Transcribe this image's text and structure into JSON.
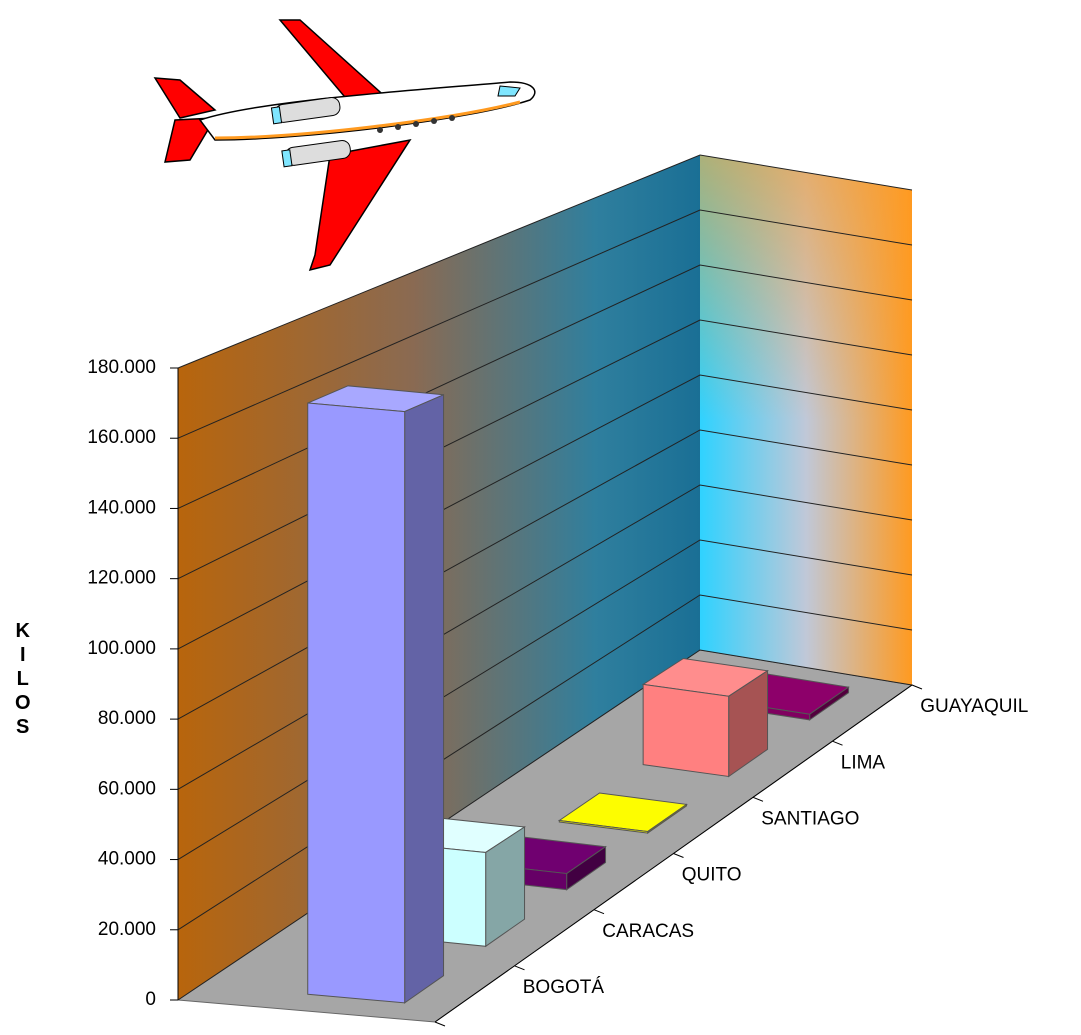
{
  "chart_data": {
    "type": "bar3d",
    "y_label": "KILOS",
    "categories": [
      "BOGOTÁ",
      "CARACAS",
      "QUITO",
      "SANTIAGO",
      "LIMA",
      "GUAYAQUIL"
    ],
    "values": [
      170000,
      28000,
      5000,
      500,
      27000,
      2000
    ],
    "colors": [
      "#9999ff",
      "#ccffff",
      "#660066",
      "#e6e600",
      "#ff8080",
      "#800060"
    ],
    "ylim": [
      0,
      180000
    ],
    "yticks": [
      0,
      {
        "value": 20000,
        "label": "20.000"
      },
      {
        "value": 40000,
        "label": "40.000"
      },
      {
        "value": 60000,
        "label": "60.000"
      },
      {
        "value": 80000,
        "label": "80.000"
      },
      {
        "value": 100000,
        "label": "100.000"
      },
      {
        "value": 120000,
        "label": "120.000"
      },
      {
        "value": 140000,
        "label": "140.000"
      },
      {
        "value": 160000,
        "label": "160.000"
      },
      {
        "value": 180000,
        "label": "180.000"
      }
    ],
    "grid": true
  }
}
